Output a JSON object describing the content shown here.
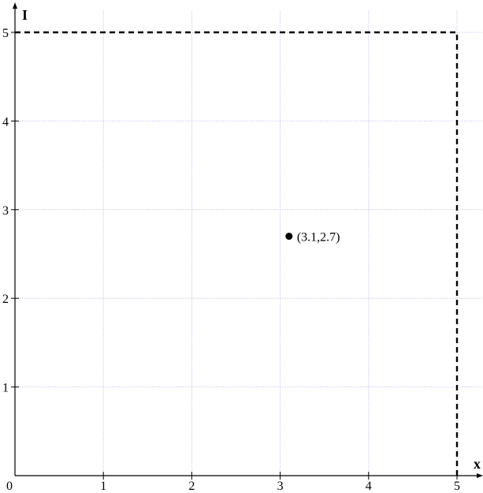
{
  "chart_data": {
    "type": "scatter",
    "title": "",
    "xlabel": "x",
    "ylabel": "I",
    "xlim": [
      0,
      5.3
    ],
    "ylim": [
      0,
      5.1
    ],
    "x_ticks": [
      "1",
      "2",
      "3",
      "4",
      "5"
    ],
    "y_ticks": [
      "1",
      "2",
      "3",
      "4",
      "5"
    ],
    "origin_label": "0",
    "grid": true,
    "bound": {
      "x": 5,
      "y": 5
    },
    "points": [
      {
        "x": 3.1,
        "y": 2.7,
        "label": "(3.1,2.7)"
      }
    ]
  }
}
